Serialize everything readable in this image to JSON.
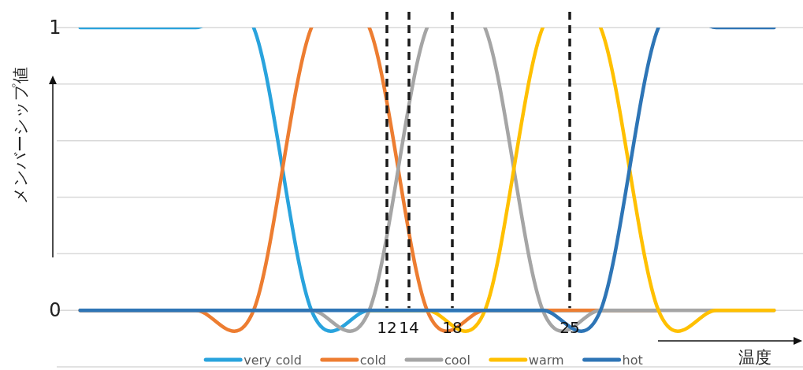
{
  "chart_data": {
    "type": "line",
    "xlabel": "温度",
    "ylabel": "メンバーシップ値",
    "categories": [
      null,
      null,
      null,
      null,
      null,
      null,
      null,
      null,
      null,
      null,
      null,
      null,
      null
    ],
    "series": [
      {
        "name": "very cold",
        "color": "#29a3dd",
        "values": [
          1,
          1,
          1,
          1,
          0,
          0,
          0,
          0,
          0,
          0,
          0,
          null,
          null
        ]
      },
      {
        "name": "cold",
        "color": "#ed7d31",
        "values": [
          0,
          0,
          0,
          0,
          1,
          1,
          0,
          0,
          0,
          0,
          0,
          null,
          null
        ]
      },
      {
        "name": "cool",
        "color": "#a5a5a5",
        "values": [
          0,
          0,
          0,
          0,
          0,
          0,
          1,
          1,
          0,
          0,
          0,
          0,
          0
        ]
      },
      {
        "name": "warm",
        "color": "#ffc000",
        "values": [
          null,
          null,
          null,
          null,
          null,
          0,
          0,
          0,
          1,
          1,
          0,
          0,
          0
        ]
      },
      {
        "name": "hot",
        "color": "#2e75b6",
        "values": [
          0,
          0,
          0,
          0,
          0,
          0,
          0,
          0,
          0,
          0,
          1,
          1,
          1
        ]
      }
    ],
    "ylim": [
      -0.2,
      1
    ],
    "yticks": [
      {
        "value": -0.2,
        "label": null
      },
      0,
      {
        "value": 0.2,
        "label": null
      },
      {
        "value": 0.4,
        "label": null
      },
      {
        "value": 0.6,
        "label": null
      },
      {
        "value": 0.8,
        "label": null
      },
      1
    ],
    "grid": "y",
    "legend": "bottom",
    "marker": "none",
    "line_style": "solid",
    "annotations": [
      "12",
      "14",
      "18",
      "25"
    ]
  }
}
